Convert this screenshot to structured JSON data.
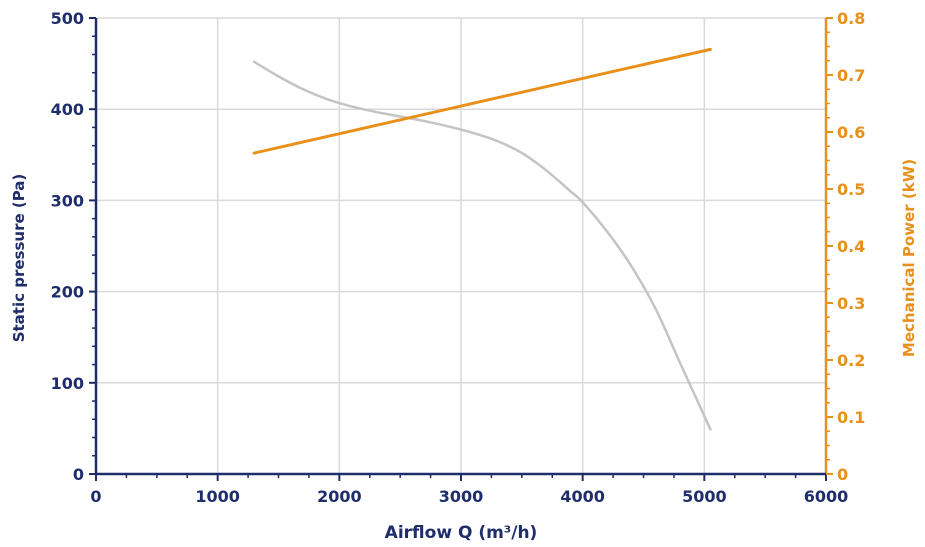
{
  "chart_data": {
    "type": "line",
    "xlabel": "Airflow Q (m³/h)",
    "ylabel_left": "Static pressure (Pa)",
    "ylabel_right": "Mechanical Power (kW)",
    "xlim": [
      0,
      6000
    ],
    "ylim_left": [
      0,
      500
    ],
    "ylim_right": [
      0,
      0.8
    ],
    "x_ticks": [
      "0",
      "1000",
      "2000",
      "3000",
      "4000",
      "5000",
      "6000"
    ],
    "y_left_ticks": [
      "0",
      "100",
      "200",
      "300",
      "400",
      "500"
    ],
    "y_right_ticks": [
      "0",
      "0.1",
      "0.2",
      "0.3",
      "0.4",
      "0.5",
      "0.6",
      "0.7",
      "0.8"
    ],
    "grid": true,
    "series": [
      {
        "axis": "left",
        "color": "#c4c4c4",
        "x": [
          1300,
          1500,
          1700,
          1900,
          2100,
          2300,
          2500,
          2700,
          2900,
          3100,
          3300,
          3500,
          3700,
          3900,
          4000,
          4200,
          4400,
          4600,
          4800,
          5050
        ],
        "y": [
          452,
          436,
          422,
          411,
          403,
          397,
          392,
          387,
          381,
          374,
          365,
          352,
          333,
          310,
          298,
          266,
          228,
          181,
          122,
          49
        ]
      },
      {
        "axis": "right",
        "color": "#e8901a",
        "x": [
          1300,
          5050
        ],
        "y": [
          0.563,
          0.745
        ]
      }
    ]
  }
}
